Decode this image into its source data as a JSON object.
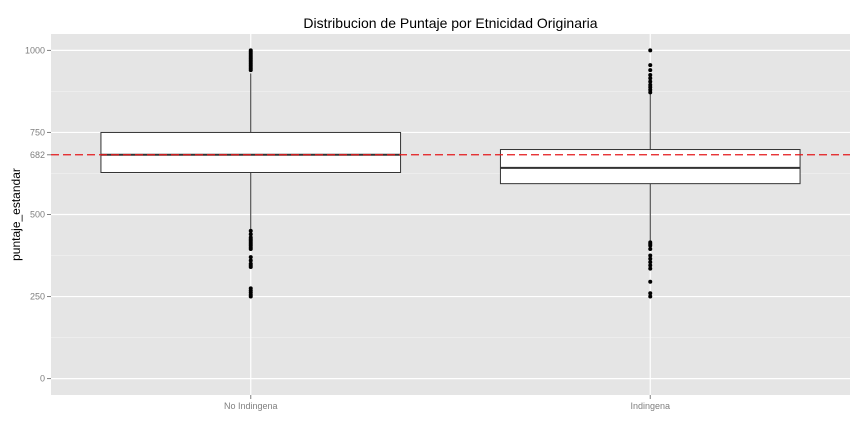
{
  "chart_data": {
    "type": "boxplot",
    "title": "Distribucion de Puntaje por Etnicidad Originaria",
    "xlabel": "",
    "ylabel": "puntaje_estandar",
    "categories": [
      "No Indingena",
      "Indingena"
    ],
    "ylim": [
      -50,
      1050
    ],
    "yticks": [
      0,
      250,
      500,
      750,
      1000
    ],
    "grid": true,
    "reference_line": {
      "value": 682,
      "label": "682",
      "color": "#e41a1c",
      "style": "dashed"
    },
    "boxes": [
      {
        "category": "No Indingena",
        "q1": 628,
        "median": 682,
        "q3": 750,
        "whisker_low": 455,
        "whisker_high": 930,
        "outliers": [
          1000,
          995,
          990,
          985,
          980,
          975,
          970,
          965,
          960,
          955,
          950,
          945,
          940,
          450,
          440,
          430,
          425,
          420,
          415,
          410,
          405,
          400,
          395,
          370,
          360,
          350,
          345,
          340,
          275,
          268,
          262,
          255,
          250
        ]
      },
      {
        "category": "Indingena",
        "q1": 594,
        "median": 642,
        "q3": 698,
        "whisker_low": 420,
        "whisker_high": 870,
        "outliers": [
          1000,
          955,
          940,
          925,
          915,
          905,
          895,
          888,
          880,
          872,
          415,
          410,
          405,
          395,
          375,
          365,
          355,
          345,
          335,
          295,
          260,
          250
        ]
      }
    ],
    "colors": {
      "panel": "#e5e5e5",
      "grid_major": "#ffffff",
      "grid_minor": "#f2f2f2",
      "box_fill": "#ffffff",
      "box_stroke": "#333333",
      "outlier": "#000000"
    }
  }
}
